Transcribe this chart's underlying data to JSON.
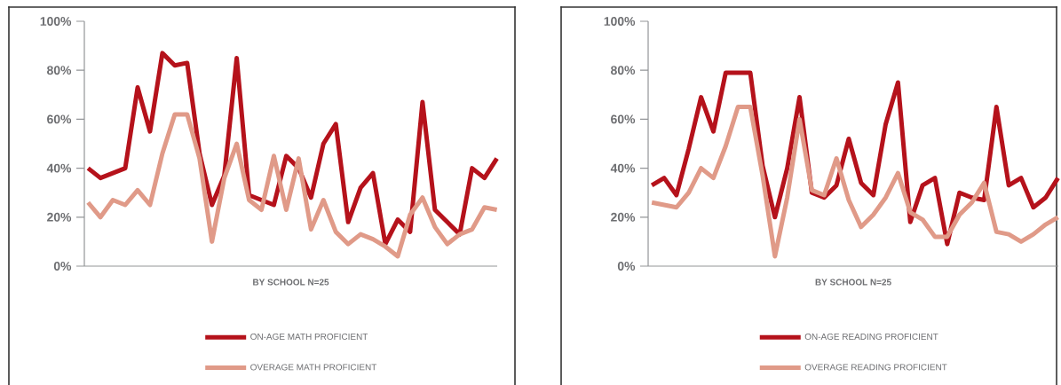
{
  "chart_data": [
    {
      "type": "line",
      "xlabel": "BY SCHOOL N=25",
      "categories": [
        null,
        null,
        null,
        null,
        null,
        null,
        null,
        null,
        null,
        null,
        null,
        null,
        null,
        null,
        null,
        null,
        null,
        null,
        null,
        null,
        null,
        null,
        null,
        null,
        null,
        null,
        null,
        null,
        null,
        null,
        null,
        null,
        null,
        null
      ],
      "ylim": [
        0,
        100
      ],
      "yticks": [
        {
          "value": 0,
          "label": "0%"
        },
        {
          "value": 20,
          "label": "20%"
        },
        {
          "value": 40,
          "label": "40%"
        },
        {
          "value": 60,
          "label": "60%"
        },
        {
          "value": 80,
          "label": "80%"
        },
        {
          "value": 100,
          "label": "100%"
        }
      ],
      "tick_labels": "y",
      "legend": "bottom",
      "series": [
        {
          "name": "ON-AGE MATH PROFICIENT",
          "color": "#b5121b",
          "values": [
            40,
            36,
            38,
            40,
            73,
            55,
            87,
            82,
            83,
            46,
            25,
            37,
            85,
            29,
            27,
            25,
            45,
            40,
            28,
            50,
            58,
            18,
            32,
            38,
            9,
            19,
            14,
            67,
            23,
            18,
            13,
            40,
            36,
            44
          ]
        },
        {
          "name": "OVERAGE MATH PROFICIENT",
          "color": "#e09a88",
          "values": [
            26,
            20,
            27,
            25,
            31,
            25,
            46,
            62,
            62,
            44,
            10,
            36,
            50,
            27,
            23,
            45,
            23,
            44,
            15,
            27,
            14,
            9,
            13,
            11,
            8,
            4,
            21,
            28,
            16,
            9,
            13,
            15,
            24,
            23
          ]
        }
      ]
    },
    {
      "type": "line",
      "xlabel": "BY SCHOOL N=25",
      "categories": [
        null,
        null,
        null,
        null,
        null,
        null,
        null,
        null,
        null,
        null,
        null,
        null,
        null,
        null,
        null,
        null,
        null,
        null,
        null,
        null,
        null,
        null,
        null,
        null,
        null,
        null,
        null,
        null,
        null,
        null,
        null,
        null,
        null,
        null
      ],
      "ylim": [
        0,
        100
      ],
      "yticks": [
        {
          "value": 0,
          "label": "0%"
        },
        {
          "value": 20,
          "label": "20%"
        },
        {
          "value": 40,
          "label": "40%"
        },
        {
          "value": 60,
          "label": "60%"
        },
        {
          "value": 80,
          "label": "80%"
        },
        {
          "value": 100,
          "label": "100%"
        }
      ],
      "tick_labels": "y",
      "legend": "bottom",
      "series": [
        {
          "name": "ON-AGE READING PROFICIENT",
          "color": "#b5121b",
          "values": [
            33,
            36,
            29,
            48,
            69,
            55,
            79,
            79,
            79,
            41,
            20,
            40,
            69,
            30,
            28,
            33,
            52,
            34,
            29,
            58,
            75,
            18,
            33,
            36,
            9,
            30,
            28,
            27,
            65,
            33,
            36,
            24,
            28,
            36
          ]
        },
        {
          "name": "OVERAGE READING PROFICIENT",
          "color": "#e09a88",
          "values": [
            26,
            25,
            24,
            30,
            40,
            36,
            49,
            65,
            65,
            37,
            4,
            28,
            60,
            31,
            29,
            44,
            27,
            16,
            21,
            28,
            38,
            22,
            19,
            12,
            12,
            21,
            26,
            34,
            14,
            13,
            10,
            13,
            17,
            20
          ]
        }
      ]
    }
  ]
}
